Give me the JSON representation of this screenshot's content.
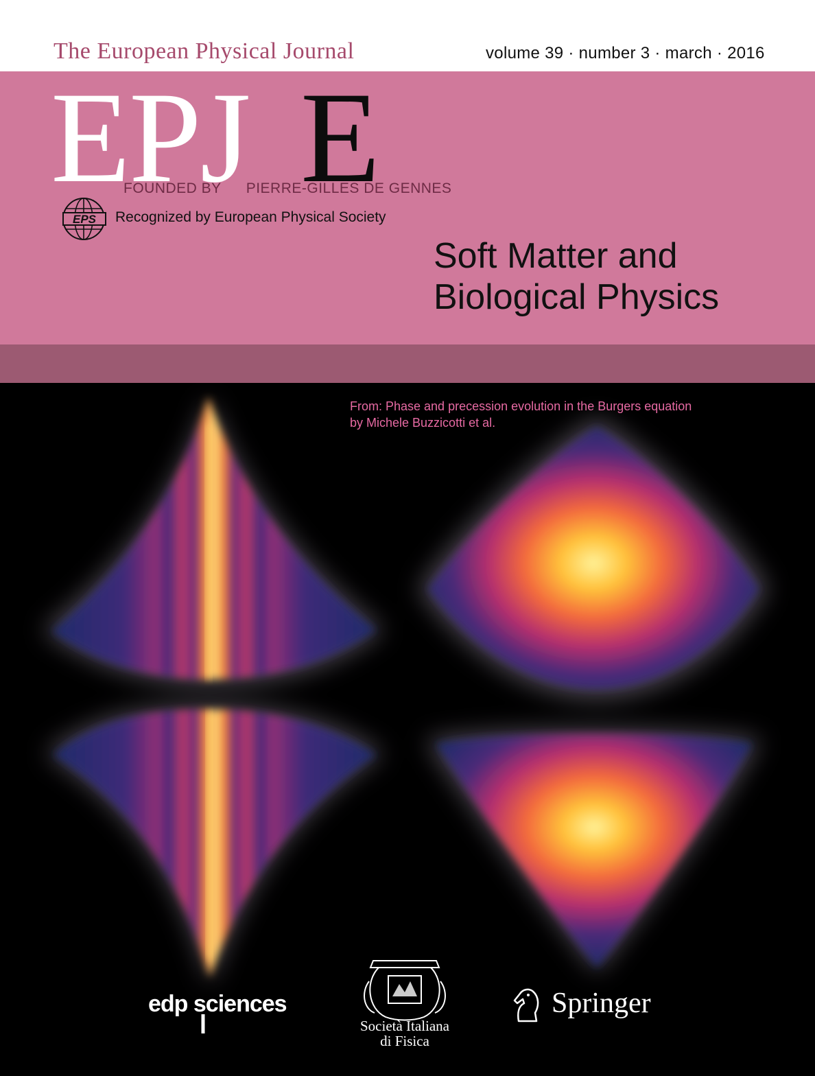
{
  "header": {
    "journal_name": "The European Physical Journal",
    "issue_info": "volume 39 · number 3 · march · 2016"
  },
  "masthead": {
    "logo_white": "EPJ",
    "logo_black": "E",
    "founded_by": "FOUNDED BY",
    "founder": "PIERRE-GILLES DE GENNES",
    "eps_logo_text": "EPS",
    "recognized": "Recognized by European Physical Society",
    "subtitle_line1": "Soft Matter and",
    "subtitle_line2": "Biological Physics"
  },
  "cover_image": {
    "caption_line1": "From: Phase and precession evolution in the Burgers equation",
    "caption_line2": "by Michele Buzzicotti et al."
  },
  "publishers": {
    "edp": "edp sciences",
    "sif_line1": "Società Italiana",
    "sif_line2": "di Fisica",
    "springer": "Springer"
  },
  "colors": {
    "pink_band": "#d0799b",
    "dark_band": "#9c5a72",
    "journal_name": "#a64a6c",
    "caption": "#e76aa3"
  }
}
